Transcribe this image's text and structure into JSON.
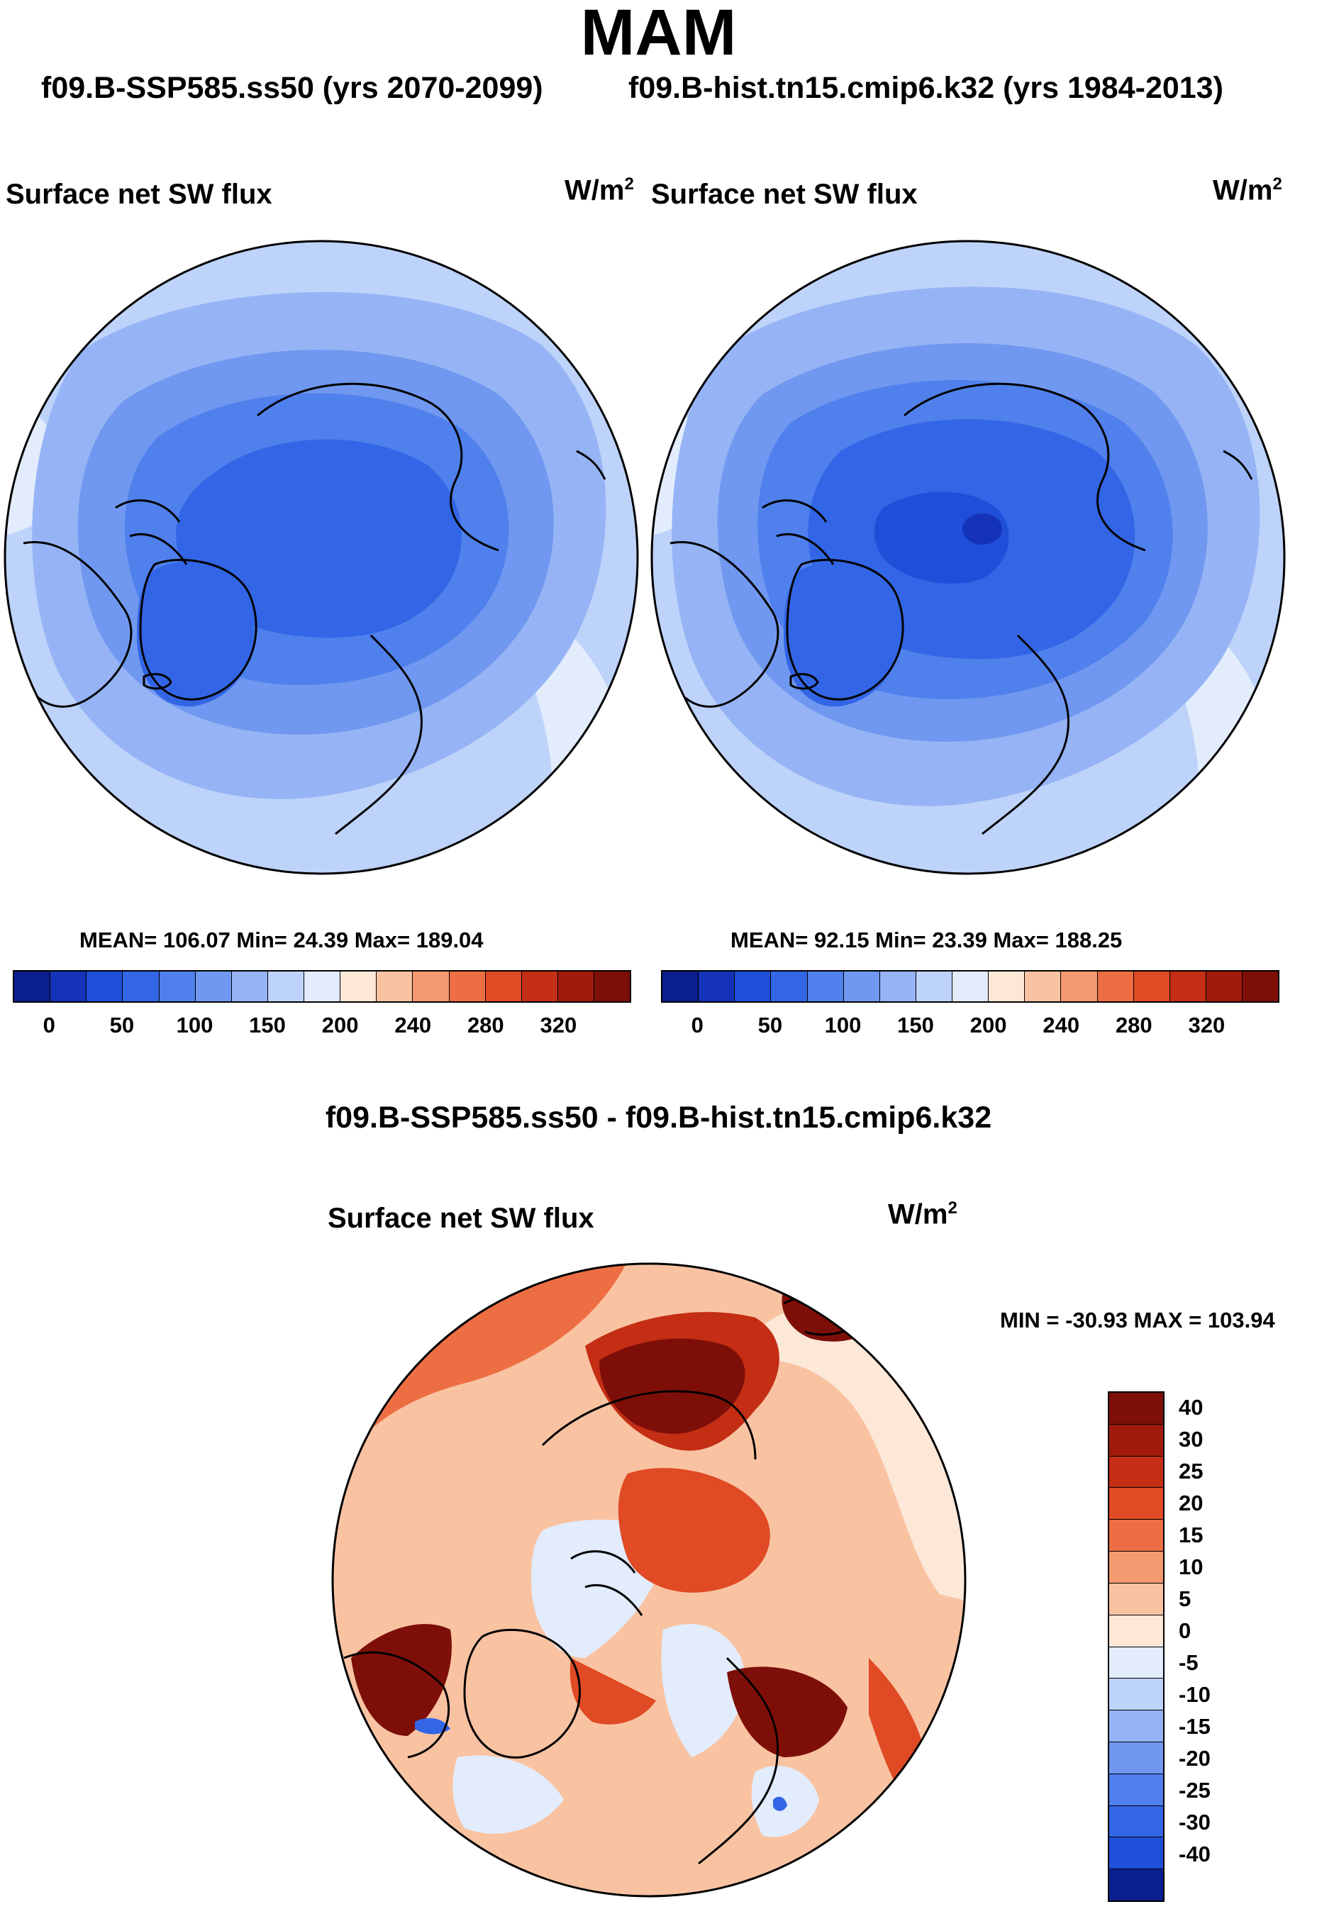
{
  "chart_data": {
    "type": "heatmap",
    "title": "MAM",
    "projection": "north polar stereographic",
    "variable": "Surface net SW flux",
    "units": "W/m2",
    "panels": [
      {
        "id": "ssp585",
        "run_title": "f09.B-SSP585.ss50 (yrs 2070-2099)",
        "label": "Surface net SW flux",
        "units_base": "W/m",
        "units_exp": "2",
        "stats": "MEAN= 106.07  Min=  24.39  Max= 189.04",
        "mean": 106.07,
        "min": 24.39,
        "max": 189.04,
        "colorbar_ticks": [
          "0",
          "50",
          "100",
          "150",
          "200",
          "240",
          "280",
          "320"
        ],
        "colorbar_colors": [
          "#0a1f8f",
          "#1433b8",
          "#1f4fd8",
          "#3366e6",
          "#4f80ec",
          "#7098f0",
          "#96b4f5",
          "#bed3fa",
          "#e2ecfc",
          "#fde8d8",
          "#f9c3a2",
          "#f49a70",
          "#ee6e44",
          "#e04a24",
          "#c32e14",
          "#a11b0c",
          "#7d0f08"
        ],
        "approx_field": {
          "central_arctic_and_greenland": "25-50",
          "arctic_ocean_margins": "50-100",
          "subpolar_ocean": "100-150",
          "continents_and_midlatitudes": "150-200"
        }
      },
      {
        "id": "hist",
        "run_title": "f09.B-hist.tn15.cmip6.k32 (yrs 1984-2013)",
        "label": "Surface net SW flux",
        "units_base": "W/m",
        "units_exp": "2",
        "stats": "MEAN=  92.15  Min=  23.39  Max= 188.25",
        "mean": 92.15,
        "min": 23.39,
        "max": 188.25,
        "colorbar_ticks": [
          "0",
          "50",
          "100",
          "150",
          "200",
          "240",
          "280",
          "320"
        ],
        "colorbar_colors": [
          "#0a1f8f",
          "#1433b8",
          "#1f4fd8",
          "#3366e6",
          "#4f80ec",
          "#7098f0",
          "#96b4f5",
          "#bed3fa",
          "#e2ecfc",
          "#fde8d8",
          "#f9c3a2",
          "#f49a70",
          "#ee6e44",
          "#e04a24",
          "#c32e14",
          "#a11b0c",
          "#7d0f08"
        ],
        "approx_field": {
          "central_arctic_and_greenland": "0-50",
          "arctic_ocean_margins": "50-100",
          "subpolar_ocean": "100-150",
          "continents_and_midlatitudes": "150-200"
        }
      },
      {
        "id": "difference",
        "run_title": "f09.B-SSP585.ss50 - f09.B-hist.tn15.cmip6.k32",
        "label": "Surface net SW flux",
        "units_base": "W/m",
        "units_exp": "2",
        "stats": "MIN = -30.93 MAX = 103.94",
        "min": -30.93,
        "max": 103.94,
        "colorbar_ticks": [
          "40",
          "30",
          "25",
          "20",
          "15",
          "10",
          "5",
          "0",
          "-5",
          "-10",
          "-15",
          "-20",
          "-25",
          "-30",
          "-40"
        ],
        "colorbar_colors": [
          "#7d0f08",
          "#a11b0c",
          "#c32e14",
          "#e04a24",
          "#ee6e44",
          "#f49a70",
          "#f9c3a2",
          "#fde8d8",
          "#e2ecfc",
          "#bed3fa",
          "#96b4f5",
          "#7098f0",
          "#4f80ec",
          "#3366e6",
          "#1f4fd8",
          "#0a1f8f"
        ],
        "approx_field": {
          "siberian_and_barents_seas": "30-40+",
          "alaska_and_hudson_bay": "25-40+",
          "mid_latitudes": "0-15",
          "central_arctic": "-5-5"
        }
      }
    ]
  }
}
